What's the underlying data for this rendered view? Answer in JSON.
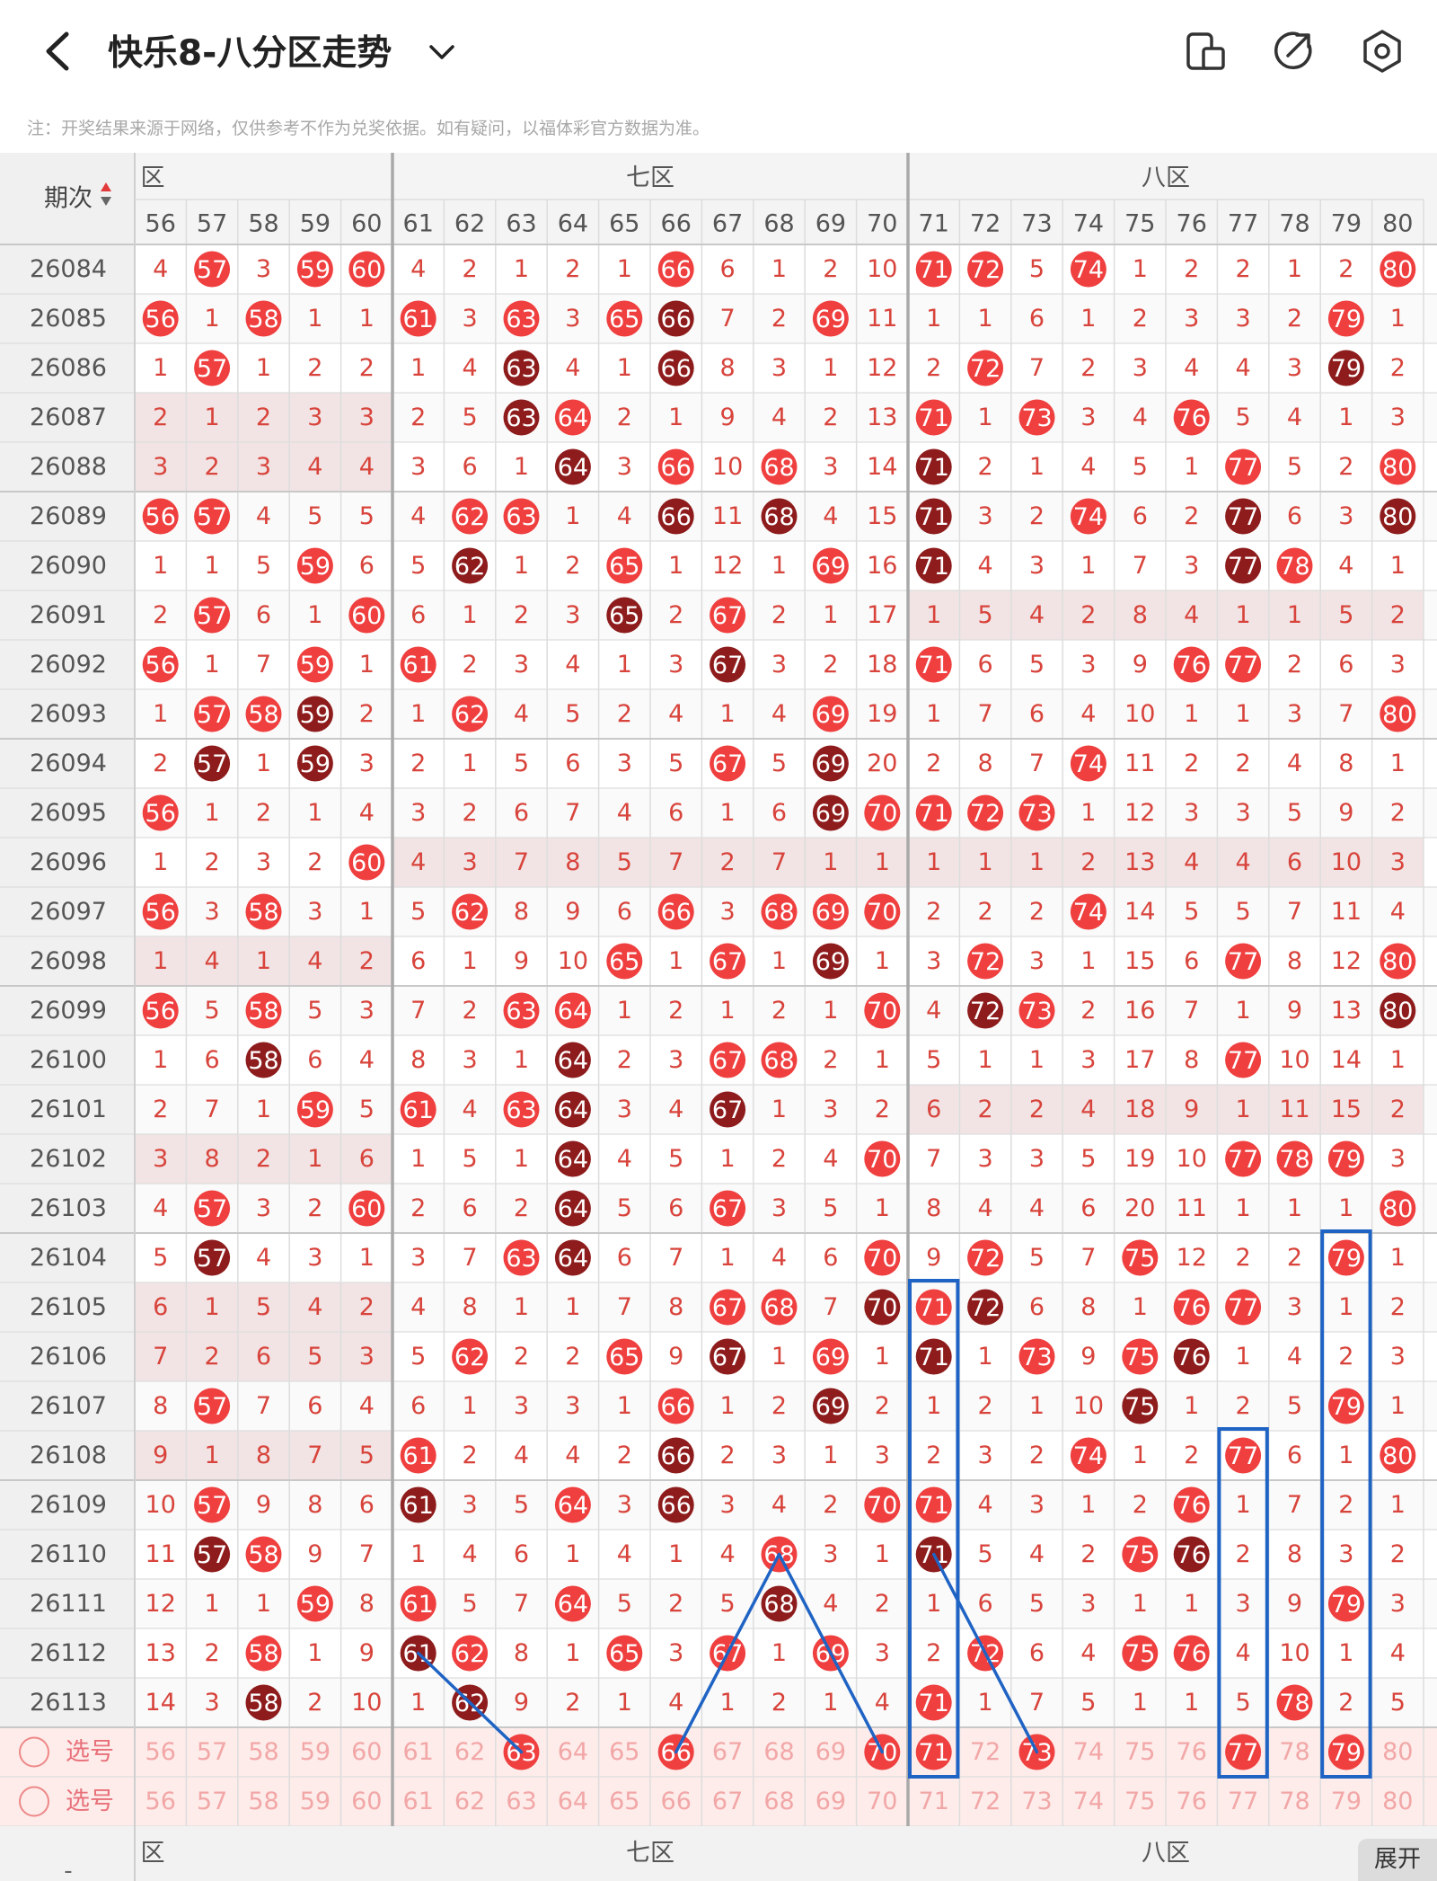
{
  "header": {
    "title": "快乐8-八分区走势",
    "icons": [
      "back-arrow-icon",
      "chevron-down-icon",
      "device-icon",
      "share-icon",
      "settings-icon"
    ]
  },
  "notice": "注：开奖结果来源于网络，仅供参考不作为兑奖依据。如有疑问，以福体彩官方数据为准。",
  "table": {
    "period_header": "期次",
    "zones": [
      {
        "label": "六区",
        "visible_label": "六区",
        "numbers": [
          56,
          57,
          58,
          59,
          60
        ]
      },
      {
        "label": "七区",
        "numbers": [
          61,
          62,
          63,
          64,
          65,
          66,
          67,
          68,
          69,
          70
        ]
      },
      {
        "label": "八区",
        "numbers": [
          71,
          72,
          73,
          74,
          75,
          76,
          77,
          78,
          79,
          80
        ]
      }
    ],
    "columns": [
      56,
      57,
      58,
      59,
      60,
      61,
      62,
      63,
      64,
      65,
      66,
      67,
      68,
      69,
      70,
      71,
      72,
      73,
      74,
      75,
      76,
      77,
      78,
      79,
      80
    ],
    "rows": [
      {
        "period": "26084",
        "cells": [
          "4",
          "57",
          "3",
          "59",
          "60",
          "4",
          "2",
          "1",
          "2",
          "1",
          "66",
          "6",
          "1",
          "2",
          "10",
          "71",
          "72",
          "5",
          "74",
          "1",
          "2",
          "2",
          "1",
          "2",
          "80"
        ]
      },
      {
        "period": "26085",
        "cells": [
          "56",
          "1",
          "58",
          "1",
          "1",
          "61",
          "3",
          "63",
          "3",
          "65",
          "66",
          "7",
          "2",
          "69",
          "11",
          "1",
          "1",
          "6",
          "1",
          "2",
          "3",
          "3",
          "2",
          "79",
          "1"
        ]
      },
      {
        "period": "26086",
        "cells": [
          "1",
          "57",
          "1",
          "2",
          "2",
          "1",
          "4",
          "63",
          "4",
          "1",
          "66",
          "8",
          "3",
          "1",
          "12",
          "2",
          "72",
          "7",
          "2",
          "3",
          "4",
          "4",
          "3",
          "79",
          "2"
        ]
      },
      {
        "period": "26087",
        "cells": [
          "2",
          "1",
          "2",
          "3",
          "3",
          "2",
          "5",
          "63",
          "64",
          "2",
          "1",
          "9",
          "4",
          "2",
          "13",
          "71",
          "1",
          "73",
          "3",
          "4",
          "76",
          "5",
          "4",
          "1",
          "3"
        ]
      },
      {
        "period": "26088",
        "cells": [
          "3",
          "2",
          "3",
          "4",
          "4",
          "3",
          "6",
          "1",
          "64",
          "3",
          "66",
          "10",
          "68",
          "3",
          "14",
          "71",
          "2",
          "1",
          "4",
          "5",
          "1",
          "77",
          "5",
          "2",
          "80"
        ]
      },
      {
        "period": "26089",
        "cells": [
          "56",
          "57",
          "4",
          "5",
          "5",
          "4",
          "62",
          "63",
          "1",
          "4",
          "66",
          "11",
          "68",
          "4",
          "15",
          "71",
          "3",
          "2",
          "74",
          "6",
          "2",
          "77",
          "6",
          "3",
          "80"
        ]
      },
      {
        "period": "26090",
        "cells": [
          "1",
          "1",
          "5",
          "59",
          "6",
          "5",
          "62",
          "1",
          "2",
          "65",
          "1",
          "12",
          "1",
          "69",
          "16",
          "71",
          "4",
          "3",
          "1",
          "7",
          "3",
          "77",
          "78",
          "4",
          "1"
        ]
      },
      {
        "period": "26091",
        "cells": [
          "2",
          "57",
          "6",
          "1",
          "60",
          "6",
          "1",
          "2",
          "3",
          "65",
          "2",
          "67",
          "2",
          "1",
          "17",
          "1",
          "5",
          "4",
          "2",
          "8",
          "4",
          "1",
          "1",
          "5",
          "2"
        ]
      },
      {
        "period": "26092",
        "cells": [
          "56",
          "1",
          "7",
          "59",
          "1",
          "61",
          "2",
          "3",
          "4",
          "1",
          "3",
          "67",
          "3",
          "2",
          "18",
          "71",
          "6",
          "5",
          "3",
          "9",
          "76",
          "77",
          "2",
          "6",
          "3"
        ]
      },
      {
        "period": "26093",
        "cells": [
          "1",
          "57",
          "58",
          "59",
          "2",
          "1",
          "62",
          "4",
          "5",
          "2",
          "4",
          "1",
          "4",
          "69",
          "19",
          "1",
          "7",
          "6",
          "4",
          "10",
          "1",
          "1",
          "3",
          "7",
          "80"
        ]
      },
      {
        "period": "26094",
        "cells": [
          "2",
          "57",
          "1",
          "59",
          "3",
          "2",
          "1",
          "5",
          "6",
          "3",
          "5",
          "67",
          "5",
          "69",
          "20",
          "2",
          "8",
          "7",
          "74",
          "11",
          "2",
          "2",
          "4",
          "8",
          "1"
        ]
      },
      {
        "period": "26095",
        "cells": [
          "56",
          "1",
          "2",
          "1",
          "4",
          "3",
          "2",
          "6",
          "7",
          "4",
          "6",
          "1",
          "6",
          "69",
          "70",
          "71",
          "72",
          "73",
          "1",
          "12",
          "3",
          "3",
          "5",
          "9",
          "2"
        ]
      },
      {
        "period": "26096",
        "cells": [
          "1",
          "2",
          "3",
          "2",
          "60",
          "4",
          "3",
          "7",
          "8",
          "5",
          "7",
          "2",
          "7",
          "1",
          "1",
          "1",
          "1",
          "1",
          "2",
          "13",
          "4",
          "4",
          "6",
          "10",
          "3"
        ]
      },
      {
        "period": "26097",
        "cells": [
          "56",
          "3",
          "58",
          "3",
          "1",
          "5",
          "62",
          "8",
          "9",
          "6",
          "66",
          "3",
          "68",
          "69",
          "70",
          "2",
          "2",
          "2",
          "74",
          "14",
          "5",
          "5",
          "7",
          "11",
          "4"
        ]
      },
      {
        "period": "26098",
        "cells": [
          "1",
          "4",
          "1",
          "4",
          "2",
          "6",
          "1",
          "9",
          "10",
          "65",
          "1",
          "67",
          "1",
          "69",
          "1",
          "3",
          "72",
          "3",
          "1",
          "15",
          "6",
          "77",
          "8",
          "12",
          "80"
        ]
      },
      {
        "period": "26099",
        "cells": [
          "56",
          "5",
          "58",
          "5",
          "3",
          "7",
          "2",
          "63",
          "64",
          "1",
          "2",
          "1",
          "2",
          "1",
          "70",
          "4",
          "72",
          "73",
          "2",
          "16",
          "7",
          "1",
          "9",
          "13",
          "80"
        ]
      },
      {
        "period": "26100",
        "cells": [
          "1",
          "6",
          "58",
          "6",
          "4",
          "8",
          "3",
          "1",
          "64",
          "2",
          "3",
          "67",
          "68",
          "2",
          "1",
          "5",
          "1",
          "1",
          "3",
          "17",
          "8",
          "77",
          "10",
          "14",
          "1"
        ]
      },
      {
        "period": "26101",
        "cells": [
          "2",
          "7",
          "1",
          "59",
          "5",
          "61",
          "4",
          "63",
          "64",
          "3",
          "4",
          "67",
          "1",
          "3",
          "2",
          "6",
          "2",
          "2",
          "4",
          "18",
          "9",
          "1",
          "11",
          "15",
          "2"
        ]
      },
      {
        "period": "26102",
        "cells": [
          "3",
          "8",
          "2",
          "1",
          "6",
          "1",
          "5",
          "1",
          "64",
          "4",
          "5",
          "1",
          "2",
          "4",
          "70",
          "7",
          "3",
          "3",
          "5",
          "19",
          "10",
          "77",
          "78",
          "79",
          "3"
        ]
      },
      {
        "period": "26103",
        "cells": [
          "4",
          "57",
          "3",
          "2",
          "60",
          "2",
          "6",
          "2",
          "64",
          "5",
          "6",
          "67",
          "3",
          "5",
          "1",
          "8",
          "4",
          "4",
          "6",
          "20",
          "11",
          "1",
          "1",
          "1",
          "80"
        ]
      },
      {
        "period": "26104",
        "cells": [
          "5",
          "57",
          "4",
          "3",
          "1",
          "3",
          "7",
          "63",
          "64",
          "6",
          "7",
          "1",
          "4",
          "6",
          "70",
          "9",
          "72",
          "5",
          "7",
          "75",
          "12",
          "2",
          "2",
          "79",
          "1"
        ]
      },
      {
        "period": "26105",
        "cells": [
          "6",
          "1",
          "5",
          "4",
          "2",
          "4",
          "8",
          "1",
          "1",
          "7",
          "8",
          "67",
          "68",
          "7",
          "70",
          "71",
          "72",
          "6",
          "8",
          "1",
          "76",
          "77",
          "3",
          "1",
          "2"
        ]
      },
      {
        "period": "26106",
        "cells": [
          "7",
          "2",
          "6",
          "5",
          "3",
          "5",
          "62",
          "2",
          "2",
          "65",
          "9",
          "67",
          "1",
          "69",
          "1",
          "71",
          "1",
          "73",
          "9",
          "75",
          "76",
          "1",
          "4",
          "2",
          "3"
        ]
      },
      {
        "period": "26107",
        "cells": [
          "8",
          "57",
          "7",
          "6",
          "4",
          "6",
          "1",
          "3",
          "3",
          "1",
          "66",
          "1",
          "2",
          "69",
          "2",
          "1",
          "2",
          "1",
          "10",
          "75",
          "1",
          "2",
          "5",
          "79",
          "1"
        ]
      },
      {
        "period": "26108",
        "cells": [
          "9",
          "1",
          "8",
          "7",
          "5",
          "61",
          "2",
          "4",
          "4",
          "2",
          "66",
          "2",
          "3",
          "1",
          "3",
          "2",
          "3",
          "2",
          "74",
          "1",
          "2",
          "77",
          "6",
          "1",
          "80"
        ]
      },
      {
        "period": "26109",
        "cells": [
          "10",
          "57",
          "9",
          "8",
          "6",
          "61",
          "3",
          "5",
          "64",
          "3",
          "66",
          "3",
          "4",
          "2",
          "70",
          "71",
          "4",
          "3",
          "1",
          "2",
          "76",
          "1",
          "7",
          "2",
          "1"
        ]
      },
      {
        "period": "26110",
        "cells": [
          "11",
          "57",
          "58",
          "9",
          "7",
          "1",
          "4",
          "6",
          "1",
          "4",
          "1",
          "4",
          "68",
          "3",
          "1",
          "71",
          "5",
          "4",
          "2",
          "75",
          "76",
          "2",
          "8",
          "3",
          "2"
        ]
      },
      {
        "period": "26111",
        "cells": [
          "12",
          "1",
          "1",
          "59",
          "8",
          "61",
          "5",
          "7",
          "64",
          "5",
          "2",
          "5",
          "68",
          "4",
          "2",
          "1",
          "6",
          "5",
          "3",
          "1",
          "1",
          "3",
          "9",
          "79",
          "3"
        ]
      },
      {
        "period": "26112",
        "cells": [
          "13",
          "2",
          "58",
          "1",
          "9",
          "61",
          "62",
          "8",
          "1",
          "65",
          "3",
          "67",
          "1",
          "69",
          "3",
          "2",
          "72",
          "6",
          "4",
          "75",
          "76",
          "4",
          "10",
          "1",
          "4"
        ]
      },
      {
        "period": "26113",
        "cells": [
          "14",
          "3",
          "58",
          "2",
          "10",
          "1",
          "62",
          "9",
          "2",
          "1",
          "4",
          "1",
          "2",
          "1",
          "4",
          "71",
          "1",
          "7",
          "5",
          "1",
          "1",
          "5",
          "78",
          "2",
          "5"
        ]
      }
    ],
    "select_rows": [
      {
        "label": "选号",
        "picked": [
          "63",
          "66",
          "70",
          "71",
          "73",
          "77",
          "79"
        ]
      },
      {
        "label": "选号",
        "picked": []
      }
    ]
  },
  "expand_label": "展开",
  "colors": {
    "ball_red": "#ef3f3f",
    "ball_dark": "#8e1c1c",
    "miss_text": "#d8443c",
    "grid_line": "#dddddd",
    "zone_divider": "#a9a9a9",
    "annotation_blue": "#1f63c4",
    "select_bg": "#fdecea",
    "header_bg": "#f0f0f0"
  }
}
